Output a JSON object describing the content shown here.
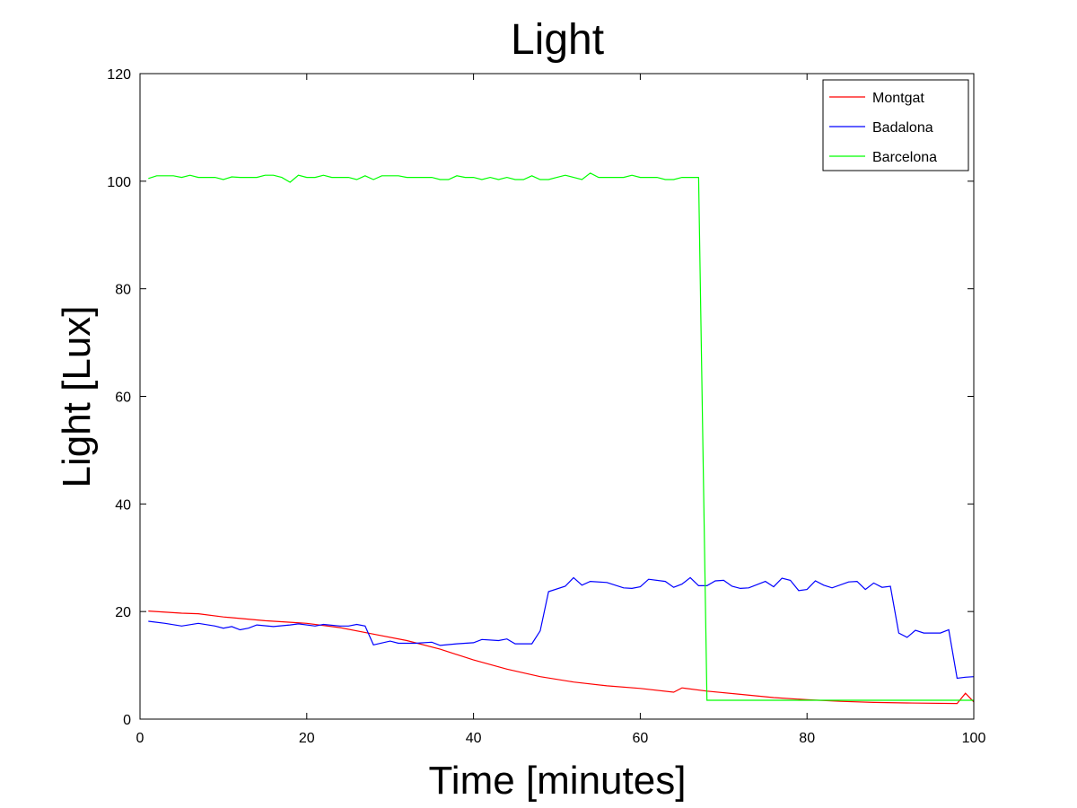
{
  "chart_data": {
    "type": "line",
    "title": "Light",
    "xlabel": "Time [minutes]",
    "ylabel": "Light [Lux]",
    "xlim": [
      0,
      100
    ],
    "ylim": [
      0,
      120
    ],
    "xticks": [
      0,
      20,
      40,
      60,
      80,
      100
    ],
    "yticks": [
      0,
      20,
      40,
      60,
      80,
      100,
      120
    ],
    "grid": false,
    "legend_position": "top-right",
    "series": [
      {
        "name": "Montgat",
        "color": "#ff0000",
        "x": [
          1,
          5,
          7,
          10,
          15,
          18,
          20,
          24,
          28,
          32,
          36,
          40,
          44,
          48,
          52,
          56,
          60,
          64,
          65,
          68,
          72,
          76,
          80,
          84,
          88,
          92,
          98,
          99,
          100
        ],
        "y": [
          20.1,
          19.7,
          19.6,
          19.0,
          18.3,
          18.0,
          17.8,
          17.0,
          15.8,
          14.6,
          13.0,
          11.0,
          9.3,
          7.9,
          6.9,
          6.2,
          5.7,
          5.0,
          5.8,
          5.2,
          4.6,
          4.0,
          3.6,
          3.3,
          3.1,
          3.0,
          2.9,
          4.8,
          3.2
        ]
      },
      {
        "name": "Badalona",
        "color": "#0000ff",
        "x": [
          1,
          3,
          5,
          7,
          9,
          10,
          11,
          12,
          13,
          14,
          16,
          18,
          19,
          21,
          22,
          24,
          25,
          26,
          27,
          28,
          30,
          31,
          33,
          35,
          36,
          38,
          40,
          41,
          43,
          44,
          45,
          47,
          48,
          49,
          51,
          52,
          53,
          54,
          56,
          58,
          59,
          60,
          61,
          63,
          64,
          65,
          66,
          67,
          68,
          69,
          70,
          71,
          72,
          73,
          75,
          76,
          77,
          78,
          79,
          80,
          81,
          82,
          83,
          85,
          86,
          87,
          88,
          89,
          90,
          91,
          92,
          93,
          94,
          95,
          96,
          97,
          98,
          99,
          100
        ],
        "y": [
          18.2,
          17.8,
          17.3,
          17.8,
          17.3,
          16.9,
          17.2,
          16.6,
          16.9,
          17.5,
          17.2,
          17.5,
          17.7,
          17.3,
          17.6,
          17.3,
          17.3,
          17.6,
          17.3,
          13.8,
          14.5,
          14.1,
          14.1,
          14.3,
          13.7,
          14.0,
          14.2,
          14.8,
          14.6,
          14.9,
          14.0,
          14.0,
          16.4,
          23.7,
          24.7,
          26.3,
          24.9,
          25.6,
          25.4,
          24.4,
          24.3,
          24.6,
          26.0,
          25.6,
          24.5,
          25.1,
          26.3,
          24.8,
          24.8,
          25.7,
          25.8,
          24.7,
          24.3,
          24.4,
          25.6,
          24.6,
          26.2,
          25.8,
          23.9,
          24.1,
          25.7,
          24.9,
          24.4,
          25.5,
          25.6,
          24.1,
          25.3,
          24.5,
          24.7,
          16.0,
          15.2,
          16.5,
          16.0,
          16.0,
          16.0,
          16.6,
          7.6,
          7.8,
          7.9
        ]
      },
      {
        "name": "Barcelona",
        "color": "#00ff00",
        "x": [
          1,
          2,
          3,
          4,
          5,
          6,
          7,
          8,
          9,
          10,
          11,
          12,
          13,
          14,
          15,
          16,
          17,
          18,
          19,
          20,
          21,
          22,
          23,
          24,
          25,
          26,
          27,
          28,
          29,
          30,
          31,
          32,
          33,
          34,
          35,
          36,
          37,
          38,
          39,
          40,
          41,
          42,
          43,
          44,
          45,
          46,
          47,
          48,
          49,
          50,
          51,
          52,
          53,
          54,
          55,
          56,
          57,
          58,
          59,
          60,
          61,
          62,
          63,
          64,
          65,
          66,
          67,
          68,
          70,
          75,
          80,
          85,
          90,
          95,
          100
        ],
        "y": [
          100.5,
          101.0,
          101.0,
          101.0,
          100.7,
          101.1,
          100.7,
          100.7,
          100.7,
          100.3,
          100.8,
          100.7,
          100.7,
          100.7,
          101.1,
          101.1,
          100.7,
          99.8,
          101.1,
          100.7,
          100.7,
          101.1,
          100.7,
          100.7,
          100.7,
          100.3,
          101.0,
          100.3,
          101.0,
          101.0,
          101.0,
          100.7,
          100.7,
          100.7,
          100.7,
          100.3,
          100.3,
          101.0,
          100.7,
          100.7,
          100.3,
          100.7,
          100.3,
          100.7,
          100.3,
          100.3,
          101.0,
          100.3,
          100.3,
          100.7,
          101.1,
          100.7,
          100.3,
          101.5,
          100.7,
          100.7,
          100.7,
          100.7,
          101.1,
          100.7,
          100.7,
          100.7,
          100.3,
          100.3,
          100.7,
          100.7,
          100.7,
          3.5,
          3.5,
          3.5,
          3.5,
          3.5,
          3.5,
          3.5,
          3.5
        ]
      }
    ]
  }
}
